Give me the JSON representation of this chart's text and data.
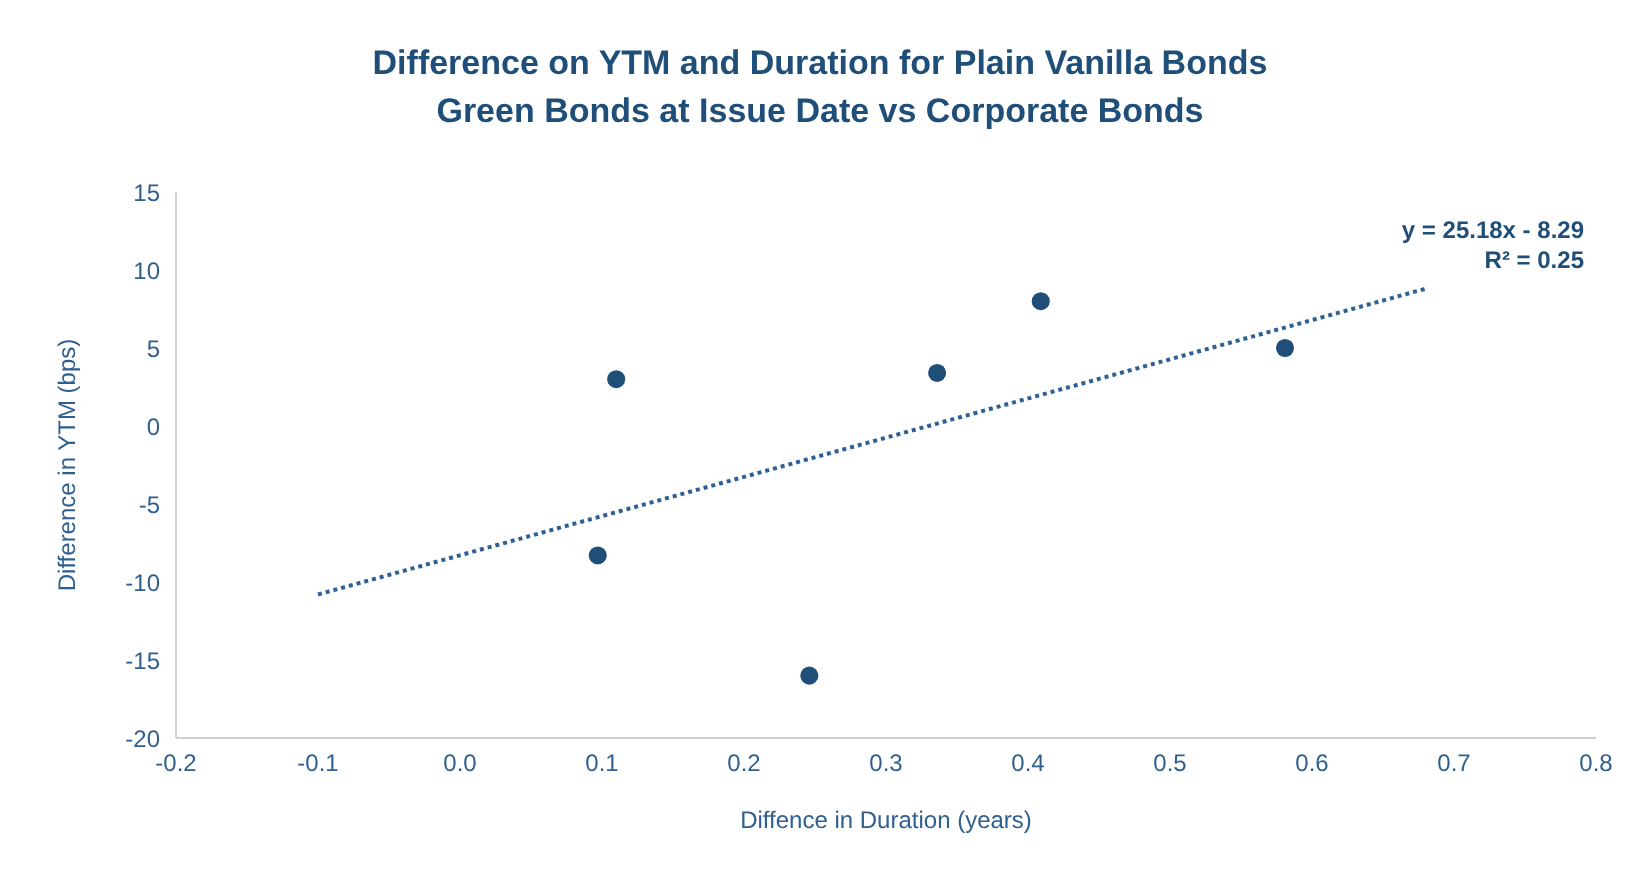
{
  "chart_data": {
    "type": "scatter",
    "title": "Difference on YTM and Duration for Plain Vanilla Bonds",
    "subtitle": "Green Bonds at Issue Date vs Corporate Bonds",
    "xlabel": "Diffence in Duration (years)",
    "ylabel": "Difference in YTM (bps)",
    "series": [
      {
        "type": "scatter",
        "color": "#1f4e79",
        "marker": "circle",
        "x": [
          0.097,
          0.11,
          0.246,
          0.336,
          0.409,
          0.581
        ],
        "values": [
          -8.3,
          3.0,
          -16.0,
          3.4,
          8.0,
          5.0
        ]
      },
      {
        "type": "line",
        "color": "#2e6096",
        "marker": "none",
        "line_style": "dotted",
        "x": [
          -0.1,
          0.68
        ],
        "values": [
          -10.8,
          8.8
        ]
      }
    ],
    "annotations": [
      "y = 25.18x - 8.29",
      "R² = 0.25"
    ],
    "xlim": [
      -0.2,
      0.8
    ],
    "xticks": [
      {
        "value": -0.2,
        "label": "-0.2"
      },
      {
        "value": -0.1,
        "label": "-0.1"
      },
      {
        "value": 0,
        "label": "0.0"
      },
      {
        "value": 0.1,
        "label": "0.1"
      },
      {
        "value": 0.2,
        "label": "0.2"
      },
      {
        "value": 0.3,
        "label": "0.3"
      },
      {
        "value": 0.4,
        "label": "0.4"
      },
      {
        "value": 0.5,
        "label": "0.5"
      },
      {
        "value": 0.6,
        "label": "0.6"
      },
      {
        "value": 0.7,
        "label": "0.7"
      },
      {
        "value": 0.8,
        "label": "0.8"
      }
    ],
    "ylim": [
      -20,
      15
    ],
    "yticks": [
      -20,
      -15,
      -10,
      -5,
      0,
      5,
      10,
      15
    ],
    "grid": false
  }
}
